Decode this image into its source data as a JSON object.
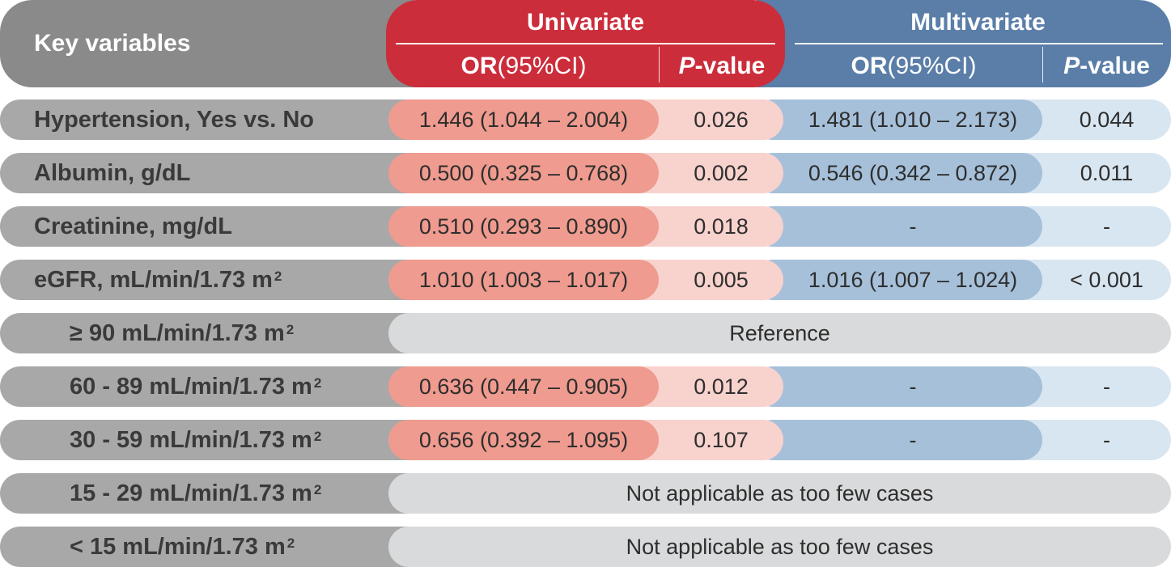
{
  "header": {
    "key_variables": "Key variables",
    "univariate": "Univariate",
    "multivariate": "Multivariate",
    "or_bold": "OR",
    "or_ci": " (95%CI)",
    "p_italic": "P",
    "p_rest": "-value"
  },
  "rows": [
    {
      "label": "Hypertension, Yes vs. No",
      "uni_or": "1.446 (1.044 – 2.004)",
      "uni_p": "0.026",
      "multi_or": "1.481 (1.010 – 2.173)",
      "multi_p": "0.044"
    },
    {
      "label": "Albumin, g/dL",
      "uni_or": "0.500 (0.325 – 0.768)",
      "uni_p": "0.002",
      "multi_or": "0.546 (0.342 – 0.872)",
      "multi_p": "0.011"
    },
    {
      "label": "Creatinine, mg/dL",
      "uni_or": "0.510 (0.293 – 0.890)",
      "uni_p": "0.018",
      "multi_or": "-",
      "multi_p": "-"
    },
    {
      "label": "eGFR, mL/min/1.73 m",
      "label_sup": "2",
      "uni_or": "1.010 (1.003 – 1.017)",
      "uni_p": "0.005",
      "multi_or": "1.016 (1.007 – 1.024)",
      "multi_p": "< 0.001"
    },
    {
      "label": "≥ 90 mL/min/1.73 m",
      "label_sup": "2",
      "span_text": "Reference"
    },
    {
      "label": "60 - 89 mL/min/1.73 m",
      "label_sup": "2",
      "uni_or": "0.636 (0.447 – 0.905)",
      "uni_p": "0.012",
      "multi_or": "-",
      "multi_p": "-"
    },
    {
      "label": "30 - 59 mL/min/1.73 m",
      "label_sup": "2",
      "uni_or": "0.656 (0.392 – 1.095)",
      "uni_p": "0.107",
      "multi_or": "-",
      "multi_p": "-"
    },
    {
      "label": "15 - 29 mL/min/1.73 m",
      "label_sup": "2",
      "span_text": "Not applicable as too few cases"
    },
    {
      "label": "< 15 mL/min/1.73 m",
      "label_sup": "2",
      "span_text": "Not applicable as too few cases"
    }
  ],
  "colors": {
    "univariate_header": "#cc2d3b",
    "multivariate_header": "#5a7ea8",
    "key_header": "#8a8a8a",
    "uni_or_cell": "#ef9b8f",
    "uni_p_cell": "#f8d2cd",
    "multi_or_cell": "#a6c0d9",
    "multi_p_cell": "#d8e6f1",
    "span_cell": "#d9dadb",
    "label_cell": "#a8a8a8"
  }
}
